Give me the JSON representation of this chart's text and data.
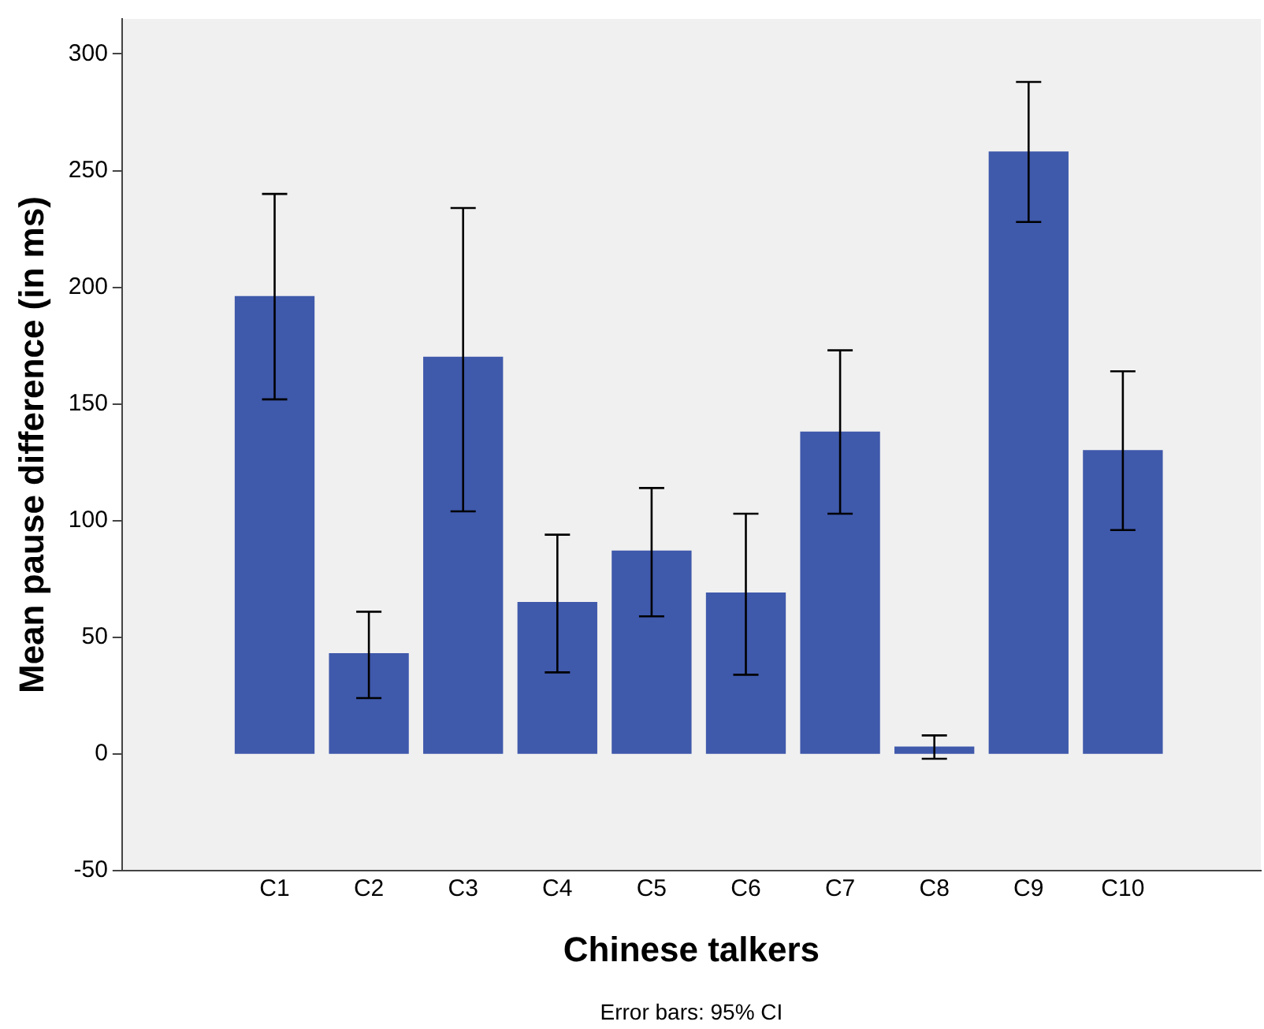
{
  "chart_data": {
    "type": "bar",
    "xlabel": "Chinese talkers",
    "ylabel": "Mean pause difference (in ms)",
    "categories": [
      "C1",
      "C2",
      "C3",
      "C4",
      "C5",
      "C6",
      "C7",
      "C8",
      "C9",
      "C10"
    ],
    "values": [
      196,
      43,
      170,
      65,
      87,
      69,
      138,
      3,
      258,
      130
    ],
    "errors": [
      [
        152,
        240
      ],
      [
        24,
        61
      ],
      [
        104,
        234
      ],
      [
        35,
        94
      ],
      [
        59,
        114
      ],
      [
        34,
        103
      ],
      [
        103,
        173
      ],
      [
        -2,
        8
      ],
      [
        228,
        288
      ],
      [
        96,
        164
      ]
    ],
    "color": "#3f59ab",
    "ylim": [
      -50,
      315
    ],
    "yticks": [
      -50,
      0,
      50,
      100,
      150,
      200,
      250,
      300
    ],
    "grid": false,
    "legend": false,
    "annotations": [
      "Error bars: 95% CI"
    ]
  }
}
